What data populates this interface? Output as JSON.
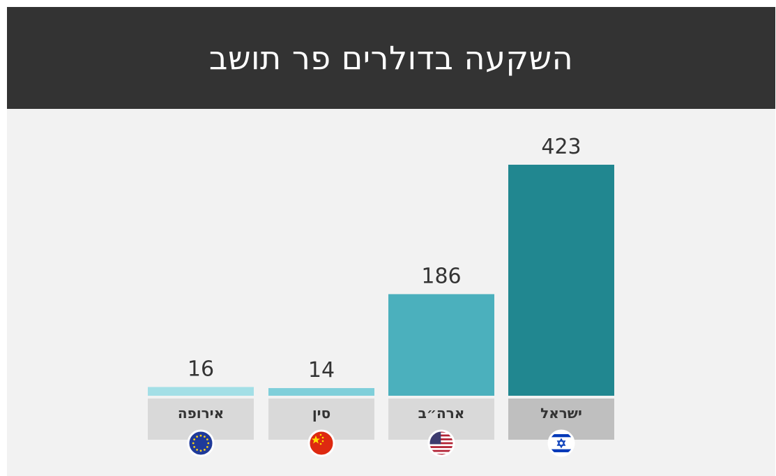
{
  "title": "השקעה בדולרים פר תושב",
  "colors": {
    "header_bg": "#333333",
    "panel_bg": "#f2f2f2",
    "label_bg": "#d9d9d9",
    "label_bg_highlight": "#bfbfbf"
  },
  "chart_data": {
    "type": "bar",
    "title": "השקעה בדולרים פר תושב",
    "categories": [
      "אירופה",
      "סין",
      "ארה״ב",
      "ישראל"
    ],
    "values": [
      16,
      14,
      186,
      423
    ],
    "bar_colors": [
      "#a3dfe6",
      "#7fcfda",
      "#4bb0bd",
      "#218790"
    ],
    "flag_icons": [
      "eu-flag-icon",
      "china-flag-icon",
      "usa-flag-icon",
      "israel-flag-icon"
    ],
    "ylim": [
      0,
      423
    ],
    "grid": false,
    "legend": "none"
  }
}
